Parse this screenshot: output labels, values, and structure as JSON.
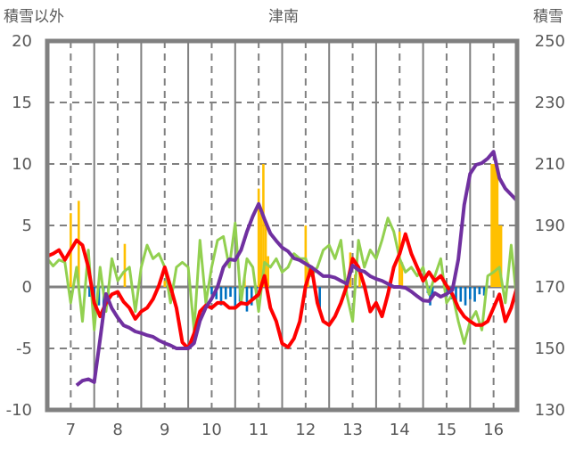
{
  "chart_data": {
    "type": "line",
    "title": "津南",
    "ylabel_left": "積雪以外",
    "ylabel_right": "積雪",
    "xlim": [
      6.5,
      16.5
    ],
    "ylim_left": [
      -10,
      20
    ],
    "ylim_right": [
      130,
      250
    ],
    "x_ticks": [
      "7",
      "8",
      "9",
      "10",
      "11",
      "12",
      "13",
      "14",
      "15",
      "16"
    ],
    "y_left_ticks": [
      "20",
      "15",
      "10",
      "5",
      "0",
      "-5",
      "-10"
    ],
    "y_right_ticks": [
      "250",
      "230",
      "210",
      "190",
      "170",
      "150",
      "130"
    ],
    "grid": true,
    "colors": {
      "red": "#ff0000",
      "green": "#92d050",
      "purple": "#7030a0",
      "bar_pos": "#ffc000",
      "bar_neg": "#0070c0",
      "axis": "#808080"
    },
    "series": [
      {
        "name": "red",
        "axis": "left",
        "x0": 6.5,
        "dx": 0.125,
        "values": [
          2.5,
          2.7,
          3,
          2.2,
          3,
          3.8,
          3.4,
          1.6,
          -1.3,
          -2.4,
          -1.3,
          -0.6,
          -0.4,
          -1.2,
          -1.7,
          -2.6,
          -2,
          -1.7,
          -1,
          0.1,
          1.6,
          0,
          -1.7,
          -4.5,
          -5,
          -3.8,
          -2,
          -1.5,
          -1.7,
          -1.3,
          -1.3,
          -1.7,
          -1.7,
          -1.3,
          -1.4,
          -1,
          -0.6,
          0.9,
          -1.7,
          -2.8,
          -4.6,
          -4.9,
          -4.2,
          -2.8,
          0.1,
          1.6,
          -1.3,
          -2.8,
          -3.1,
          -2.4,
          -1.3,
          0.1,
          2.3,
          1.6,
          0.1,
          -2,
          -1.3,
          -2.4,
          -0.6,
          1.6,
          2.7,
          4.3,
          2.7,
          1.6,
          0.5,
          1.2,
          0.5,
          0.9,
          0.1,
          -0.6,
          -1.7,
          -2.4,
          -2.8,
          -3.1,
          -3.1,
          -2.8,
          -1.7,
          -0.6,
          -2.8,
          -1.7,
          0
        ]
      },
      {
        "name": "green",
        "axis": "left",
        "x0": 6.5,
        "dx": 0.125,
        "values": [
          2.3,
          1.7,
          2.2,
          2,
          -1.3,
          1.6,
          -2.8,
          3,
          -3.5,
          1.6,
          -2,
          2.3,
          0.5,
          1.2,
          1.6,
          -2,
          1.6,
          3.4,
          2.3,
          2.7,
          1.6,
          -1.3,
          1.6,
          2,
          1.6,
          -3.5,
          3.8,
          -1.3,
          1.6,
          3.8,
          4.1,
          1.6,
          5.2,
          -1.3,
          2.3,
          1.6,
          -2,
          2,
          1.6,
          2.3,
          1.2,
          1.6,
          2.7,
          2.3,
          2.3,
          0.9,
          1.6,
          3,
          3.4,
          2.3,
          3.8,
          -0.6,
          -2.8,
          3.8,
          1.6,
          3,
          2.3,
          3.8,
          5.6,
          4.5,
          2.3,
          1.2,
          1.6,
          0.9,
          1.6,
          -0.6,
          0.9,
          2.3,
          -1.3,
          -0.6,
          -2.8,
          -4.6,
          -2.8,
          -2,
          -3.5,
          0.9,
          1.2,
          1.6,
          -1.3,
          3.4,
          -1.3
        ]
      },
      {
        "name": "purple",
        "axis": "right",
        "x0": 7.125,
        "dx": 0.125,
        "values": [
          138,
          139.5,
          140,
          139,
          153,
          167.7,
          163,
          160,
          157.5,
          156.7,
          155.5,
          155,
          154.3,
          153.8,
          152.6,
          151.7,
          151,
          150,
          150,
          150,
          151.7,
          159,
          163.3,
          166.2,
          170,
          176.4,
          179,
          178.7,
          182,
          188,
          193,
          197,
          192,
          187.4,
          185,
          182.8,
          181.6,
          179.3,
          178.7,
          177.5,
          176.4,
          175,
          173.5,
          173.5,
          173,
          172,
          171,
          177,
          175.5,
          175,
          173.5,
          172.6,
          172,
          171,
          170,
          170,
          169.7,
          168.5,
          167,
          165.6,
          165.4,
          168,
          166.8,
          167.7,
          169,
          179,
          196.7,
          206.8,
          209.7,
          210.3,
          211.8,
          214,
          205.4,
          202,
          200,
          198
        ]
      }
    ],
    "bars": [
      [
        7.0,
        6
      ],
      [
        7.17,
        7
      ],
      [
        7.3,
        -0.5
      ],
      [
        7.4,
        -0.8
      ],
      [
        7.5,
        -1
      ],
      [
        7.6,
        -1.5
      ],
      [
        7.7,
        -2
      ],
      [
        7.8,
        -1
      ],
      [
        8.15,
        3.5
      ],
      [
        9.0,
        0.5
      ],
      [
        10.0,
        -0.6
      ],
      [
        10.1,
        -1
      ],
      [
        10.2,
        -1.5
      ],
      [
        10.3,
        -1
      ],
      [
        10.4,
        -0.8
      ],
      [
        10.5,
        -1.6
      ],
      [
        10.6,
        -1.2
      ],
      [
        10.7,
        0.8
      ],
      [
        10.75,
        -2
      ],
      [
        10.85,
        -1.5
      ],
      [
        10.95,
        -1
      ],
      [
        11.0,
        8
      ],
      [
        11.05,
        6
      ],
      [
        11.1,
        10
      ],
      [
        11.15,
        5
      ],
      [
        11.2,
        2.5
      ],
      [
        12.0,
        5
      ],
      [
        12.05,
        2
      ],
      [
        12.3,
        -1.8
      ],
      [
        12.95,
        2.8
      ],
      [
        13.05,
        1
      ],
      [
        13.15,
        1.5
      ],
      [
        14.0,
        4.5
      ],
      [
        14.05,
        2
      ],
      [
        14.6,
        -0.5
      ],
      [
        14.65,
        -1.5
      ],
      [
        14.7,
        -0.8
      ],
      [
        15.0,
        -0.8
      ],
      [
        15.1,
        -1
      ],
      [
        15.2,
        -1.7
      ],
      [
        15.3,
        -1.2
      ],
      [
        15.4,
        -1.5
      ],
      [
        15.5,
        -1
      ],
      [
        15.6,
        -1.2
      ],
      [
        15.7,
        -0.6
      ],
      [
        15.8,
        -0.7
      ],
      [
        15.96,
        10
      ],
      [
        16.0,
        10
      ],
      [
        16.04,
        10
      ],
      [
        16.08,
        10
      ],
      [
        16.12,
        5
      ],
      [
        16.16,
        5
      ]
    ]
  }
}
